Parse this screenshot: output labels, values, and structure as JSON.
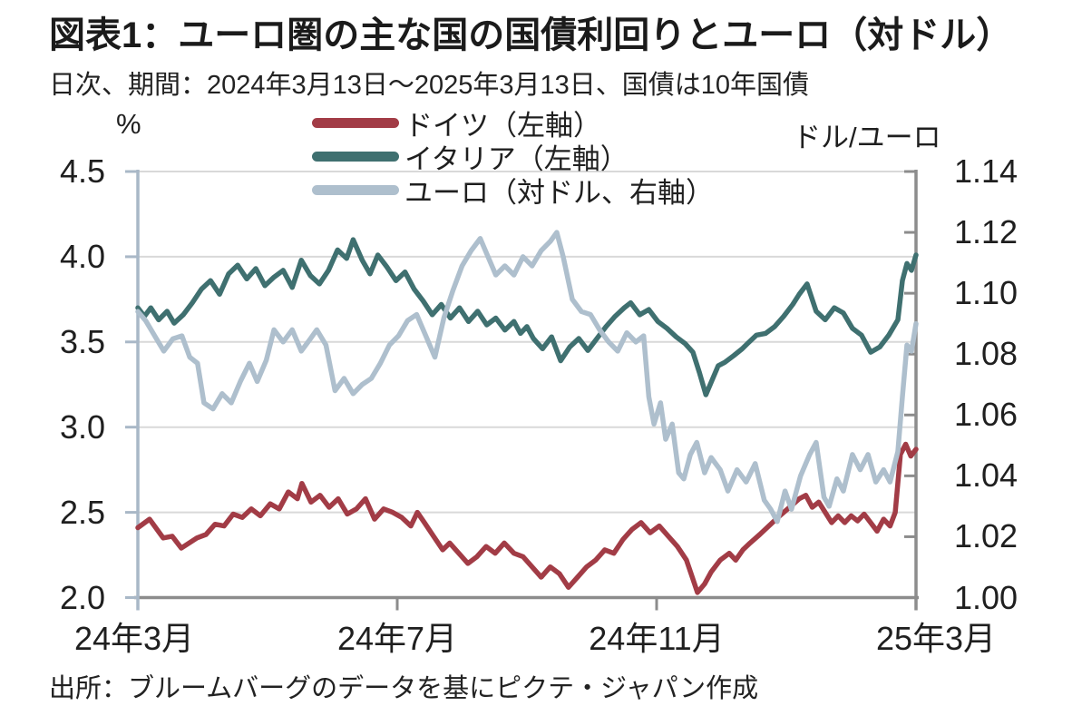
{
  "header": {
    "title": "図表1：ユーロ圏の主な国の国債利回りとユーロ（対ドル）",
    "subtitle": "日次、期間：2024年3月13日～2025年3月13日、国債は10年国債"
  },
  "source": "出所：ブルームバーグのデータを基にピクテ・ジャパン作成",
  "colors": {
    "germany": "#a23c46",
    "italy": "#3f7070",
    "euro": "#aebfcd",
    "grid": "#d9d9d9",
    "axis_left": "#a9b8c7",
    "axis_gray": "#8c8c8c",
    "text": "#1f1f1f"
  },
  "chart_data": {
    "type": "line",
    "title": "図表1：ユーロ圏の主な国の国債利回りとユーロ（対ドル）",
    "subtitle": "日次、期間：2024年3月13日～2025年3月13日、国債は10年国債",
    "grid": true,
    "legend_position": "top",
    "x_axis": {
      "tick_labels": [
        "24年3月",
        "24年7月",
        "24年11月",
        "25年3月"
      ],
      "tick_months": [
        0,
        4,
        8,
        12
      ],
      "range_months": [
        0,
        12
      ]
    },
    "left_axis": {
      "unit": "%",
      "min": 2.0,
      "max": 4.5,
      "tick_values": [
        4.5,
        4.0,
        3.5,
        3.0,
        2.5,
        2.0
      ],
      "tick_labels": [
        "4.5",
        "4.0",
        "3.5",
        "3.0",
        "2.5",
        "2.0"
      ]
    },
    "right_axis": {
      "unit": "ドル/ユーロ",
      "min": 1.0,
      "max": 1.14,
      "tick_values": [
        1.14,
        1.12,
        1.1,
        1.08,
        1.06,
        1.04,
        1.02,
        1.0
      ],
      "tick_labels": [
        "1.14",
        "1.12",
        "1.10",
        "1.08",
        "1.06",
        "1.04",
        "1.02",
        "1.00"
      ]
    },
    "series": [
      {
        "name": "ドイツ（左軸）",
        "axis": "left",
        "color": "#a23c46",
        "points": [
          [
            0,
            2.41
          ],
          [
            0.18,
            2.46
          ],
          [
            0.39,
            2.35
          ],
          [
            0.53,
            2.36
          ],
          [
            0.67,
            2.29
          ],
          [
            0.91,
            2.35
          ],
          [
            1.05,
            2.37
          ],
          [
            1.19,
            2.43
          ],
          [
            1.33,
            2.42
          ],
          [
            1.47,
            2.49
          ],
          [
            1.61,
            2.47
          ],
          [
            1.75,
            2.52
          ],
          [
            1.89,
            2.48
          ],
          [
            2.04,
            2.55
          ],
          [
            2.18,
            2.52
          ],
          [
            2.32,
            2.62
          ],
          [
            2.46,
            2.58
          ],
          [
            2.53,
            2.67
          ],
          [
            2.67,
            2.56
          ],
          [
            2.81,
            2.6
          ],
          [
            2.95,
            2.53
          ],
          [
            3.09,
            2.58
          ],
          [
            3.23,
            2.49
          ],
          [
            3.37,
            2.52
          ],
          [
            3.51,
            2.58
          ],
          [
            3.65,
            2.46
          ],
          [
            3.79,
            2.52
          ],
          [
            3.93,
            2.5
          ],
          [
            4.07,
            2.47
          ],
          [
            4.21,
            2.42
          ],
          [
            4.31,
            2.5
          ],
          [
            4.42,
            2.44
          ],
          [
            4.56,
            2.36
          ],
          [
            4.7,
            2.28
          ],
          [
            4.81,
            2.32
          ],
          [
            4.95,
            2.26
          ],
          [
            5.09,
            2.2
          ],
          [
            5.23,
            2.24
          ],
          [
            5.37,
            2.3
          ],
          [
            5.51,
            2.26
          ],
          [
            5.65,
            2.32
          ],
          [
            5.8,
            2.26
          ],
          [
            5.94,
            2.24
          ],
          [
            6.08,
            2.18
          ],
          [
            6.22,
            2.12
          ],
          [
            6.36,
            2.18
          ],
          [
            6.5,
            2.14
          ],
          [
            6.64,
            2.06
          ],
          [
            6.78,
            2.12
          ],
          [
            6.92,
            2.18
          ],
          [
            7.06,
            2.22
          ],
          [
            7.2,
            2.28
          ],
          [
            7.34,
            2.26
          ],
          [
            7.48,
            2.34
          ],
          [
            7.62,
            2.4
          ],
          [
            7.76,
            2.44
          ],
          [
            7.9,
            2.38
          ],
          [
            8.04,
            2.42
          ],
          [
            8.18,
            2.36
          ],
          [
            8.32,
            2.3
          ],
          [
            8.46,
            2.22
          ],
          [
            8.55,
            2.12
          ],
          [
            8.63,
            2.03
          ],
          [
            8.74,
            2.08
          ],
          [
            8.84,
            2.15
          ],
          [
            8.98,
            2.22
          ],
          [
            9.12,
            2.26
          ],
          [
            9.22,
            2.22
          ],
          [
            9.33,
            2.28
          ],
          [
            9.44,
            2.32
          ],
          [
            9.59,
            2.37
          ],
          [
            9.73,
            2.42
          ],
          [
            9.87,
            2.47
          ],
          [
            10.05,
            2.53
          ],
          [
            10.2,
            2.58
          ],
          [
            10.3,
            2.6
          ],
          [
            10.4,
            2.53
          ],
          [
            10.5,
            2.56
          ],
          [
            10.6,
            2.5
          ],
          [
            10.7,
            2.44
          ],
          [
            10.8,
            2.48
          ],
          [
            10.9,
            2.44
          ],
          [
            11,
            2.48
          ],
          [
            11.1,
            2.45
          ],
          [
            11.2,
            2.49
          ],
          [
            11.3,
            2.44
          ],
          [
            11.4,
            2.39
          ],
          [
            11.5,
            2.46
          ],
          [
            11.6,
            2.42
          ],
          [
            11.68,
            2.5
          ],
          [
            11.76,
            2.84
          ],
          [
            11.84,
            2.9
          ],
          [
            11.92,
            2.83
          ],
          [
            12,
            2.87
          ]
        ]
      },
      {
        "name": "イタリア（左軸）",
        "axis": "left",
        "color": "#3f7070",
        "points": [
          [
            0,
            3.7
          ],
          [
            0.1,
            3.65
          ],
          [
            0.2,
            3.7
          ],
          [
            0.32,
            3.63
          ],
          [
            0.45,
            3.68
          ],
          [
            0.56,
            3.61
          ],
          [
            0.7,
            3.66
          ],
          [
            0.84,
            3.73
          ],
          [
            0.98,
            3.81
          ],
          [
            1.12,
            3.86
          ],
          [
            1.26,
            3.78
          ],
          [
            1.4,
            3.9
          ],
          [
            1.54,
            3.95
          ],
          [
            1.68,
            3.87
          ],
          [
            1.82,
            3.93
          ],
          [
            1.96,
            3.83
          ],
          [
            2.1,
            3.88
          ],
          [
            2.24,
            3.92
          ],
          [
            2.38,
            3.82
          ],
          [
            2.52,
            3.98
          ],
          [
            2.66,
            3.89
          ],
          [
            2.8,
            3.84
          ],
          [
            2.94,
            3.92
          ],
          [
            3.08,
            4.04
          ],
          [
            3.22,
            3.99
          ],
          [
            3.32,
            4.1
          ],
          [
            3.46,
            3.98
          ],
          [
            3.58,
            3.9
          ],
          [
            3.7,
            4.01
          ],
          [
            3.84,
            3.94
          ],
          [
            3.98,
            3.86
          ],
          [
            4.12,
            3.91
          ],
          [
            4.26,
            3.81
          ],
          [
            4.4,
            3.74
          ],
          [
            4.54,
            3.66
          ],
          [
            4.68,
            3.72
          ],
          [
            4.82,
            3.64
          ],
          [
            4.96,
            3.7
          ],
          [
            5.1,
            3.62
          ],
          [
            5.24,
            3.68
          ],
          [
            5.38,
            3.6
          ],
          [
            5.52,
            3.64
          ],
          [
            5.66,
            3.57
          ],
          [
            5.8,
            3.62
          ],
          [
            5.9,
            3.55
          ],
          [
            6,
            3.59
          ],
          [
            6.1,
            3.52
          ],
          [
            6.24,
            3.46
          ],
          [
            6.38,
            3.53
          ],
          [
            6.52,
            3.39
          ],
          [
            6.66,
            3.47
          ],
          [
            6.8,
            3.52
          ],
          [
            6.94,
            3.45
          ],
          [
            7.08,
            3.52
          ],
          [
            7.22,
            3.59
          ],
          [
            7.36,
            3.65
          ],
          [
            7.5,
            3.7
          ],
          [
            7.6,
            3.73
          ],
          [
            7.74,
            3.66
          ],
          [
            7.88,
            3.69
          ],
          [
            8.02,
            3.62
          ],
          [
            8.16,
            3.58
          ],
          [
            8.3,
            3.53
          ],
          [
            8.44,
            3.49
          ],
          [
            8.56,
            3.44
          ],
          [
            8.66,
            3.32
          ],
          [
            8.76,
            3.19
          ],
          [
            8.86,
            3.28
          ],
          [
            8.95,
            3.36
          ],
          [
            9.05,
            3.38
          ],
          [
            9.19,
            3.42
          ],
          [
            9.32,
            3.46
          ],
          [
            9.4,
            3.49
          ],
          [
            9.54,
            3.54
          ],
          [
            9.68,
            3.55
          ],
          [
            9.82,
            3.59
          ],
          [
            9.96,
            3.65
          ],
          [
            10.1,
            3.72
          ],
          [
            10.2,
            3.78
          ],
          [
            10.32,
            3.84
          ],
          [
            10.46,
            3.68
          ],
          [
            10.6,
            3.63
          ],
          [
            10.74,
            3.7
          ],
          [
            10.88,
            3.67
          ],
          [
            11.02,
            3.58
          ],
          [
            11.16,
            3.54
          ],
          [
            11.3,
            3.44
          ],
          [
            11.44,
            3.47
          ],
          [
            11.58,
            3.54
          ],
          [
            11.72,
            3.63
          ],
          [
            11.79,
            3.86
          ],
          [
            11.86,
            3.96
          ],
          [
            11.93,
            3.92
          ],
          [
            12,
            4.01
          ]
        ]
      },
      {
        "name": "ユーロ（対ドル、右軸）",
        "axis": "right",
        "color": "#aebfcd",
        "points": [
          [
            0,
            1.094
          ],
          [
            0.12,
            1.091
          ],
          [
            0.26,
            1.086
          ],
          [
            0.4,
            1.081
          ],
          [
            0.54,
            1.085
          ],
          [
            0.68,
            1.086
          ],
          [
            0.8,
            1.079
          ],
          [
            0.92,
            1.077
          ],
          [
            1.02,
            1.064
          ],
          [
            1.16,
            1.062
          ],
          [
            1.3,
            1.067
          ],
          [
            1.44,
            1.064
          ],
          [
            1.58,
            1.071
          ],
          [
            1.72,
            1.077
          ],
          [
            1.84,
            1.071
          ],
          [
            1.98,
            1.078
          ],
          [
            2.1,
            1.088
          ],
          [
            2.24,
            1.084
          ],
          [
            2.38,
            1.088
          ],
          [
            2.52,
            1.081
          ],
          [
            2.66,
            1.085
          ],
          [
            2.76,
            1.088
          ],
          [
            2.9,
            1.083
          ],
          [
            3.04,
            1.068
          ],
          [
            3.18,
            1.072
          ],
          [
            3.32,
            1.067
          ],
          [
            3.46,
            1.07
          ],
          [
            3.6,
            1.072
          ],
          [
            3.74,
            1.077
          ],
          [
            3.88,
            1.083
          ],
          [
            4.02,
            1.086
          ],
          [
            4.16,
            1.091
          ],
          [
            4.3,
            1.093
          ],
          [
            4.44,
            1.086
          ],
          [
            4.58,
            1.079
          ],
          [
            4.72,
            1.092
          ],
          [
            4.86,
            1.101
          ],
          [
            5,
            1.109
          ],
          [
            5.14,
            1.114
          ],
          [
            5.28,
            1.118
          ],
          [
            5.4,
            1.112
          ],
          [
            5.52,
            1.106
          ],
          [
            5.66,
            1.109
          ],
          [
            5.8,
            1.106
          ],
          [
            5.94,
            1.112
          ],
          [
            6.08,
            1.109
          ],
          [
            6.22,
            1.114
          ],
          [
            6.36,
            1.117
          ],
          [
            6.46,
            1.12
          ],
          [
            6.56,
            1.112
          ],
          [
            6.7,
            1.098
          ],
          [
            6.84,
            1.094
          ],
          [
            6.98,
            1.093
          ],
          [
            7.12,
            1.088
          ],
          [
            7.26,
            1.084
          ],
          [
            7.4,
            1.081
          ],
          [
            7.54,
            1.087
          ],
          [
            7.68,
            1.084
          ],
          [
            7.8,
            1.086
          ],
          [
            7.88,
            1.066
          ],
          [
            7.96,
            1.057
          ],
          [
            8.06,
            1.064
          ],
          [
            8.14,
            1.052
          ],
          [
            8.24,
            1.057
          ],
          [
            8.34,
            1.041
          ],
          [
            8.42,
            1.039
          ],
          [
            8.52,
            1.047
          ],
          [
            8.62,
            1.051
          ],
          [
            8.74,
            1.041
          ],
          [
            8.84,
            1.046
          ],
          [
            8.98,
            1.042
          ],
          [
            9.1,
            1.035
          ],
          [
            9.24,
            1.042
          ],
          [
            9.38,
            1.038
          ],
          [
            9.52,
            1.044
          ],
          [
            9.66,
            1.032
          ],
          [
            9.76,
            1.029
          ],
          [
            9.86,
            1.025
          ],
          [
            9.98,
            1.035
          ],
          [
            10.08,
            1.029
          ],
          [
            10.22,
            1.04
          ],
          [
            10.36,
            1.047
          ],
          [
            10.46,
            1.051
          ],
          [
            10.58,
            1.033
          ],
          [
            10.66,
            1.03
          ],
          [
            10.78,
            1.039
          ],
          [
            10.88,
            1.035
          ],
          [
            11.02,
            1.047
          ],
          [
            11.14,
            1.042
          ],
          [
            11.26,
            1.047
          ],
          [
            11.38,
            1.038
          ],
          [
            11.5,
            1.042
          ],
          [
            11.6,
            1.038
          ],
          [
            11.72,
            1.048
          ],
          [
            11.79,
            1.066
          ],
          [
            11.86,
            1.083
          ],
          [
            11.93,
            1.081
          ],
          [
            12,
            1.09
          ]
        ]
      }
    ]
  }
}
